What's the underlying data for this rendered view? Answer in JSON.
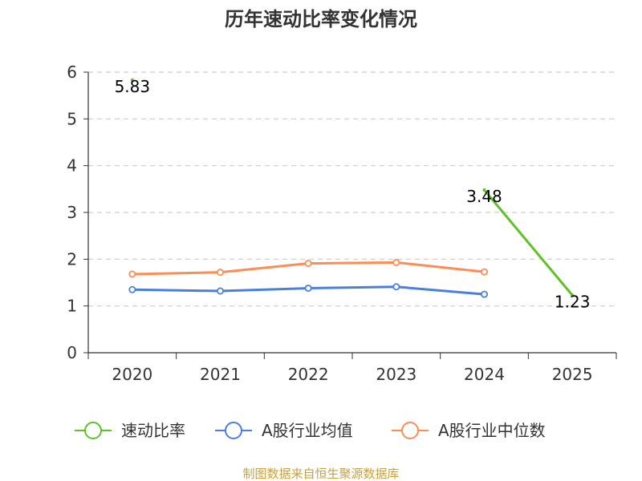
{
  "chart_data": {
    "type": "line",
    "title": "历年速动比率变化情况",
    "categories": [
      "2020",
      "2021",
      "2022",
      "2023",
      "2024",
      "2025"
    ],
    "ylim": [
      0,
      6
    ],
    "yticks": [
      "0",
      "1",
      "2",
      "3",
      "4",
      "5",
      "6"
    ],
    "grid": true,
    "series": [
      {
        "name": "速动比率",
        "color": "#5ec226",
        "values": [
          5.83,
          null,
          null,
          null,
          3.48,
          1.23
        ],
        "labels": [
          "5.83",
          null,
          null,
          null,
          "3.48",
          "1.23"
        ]
      },
      {
        "name": "A股行业均值",
        "color": "#4a7fdc",
        "values": [
          1.35,
          1.32,
          1.38,
          1.41,
          1.25,
          null
        ]
      },
      {
        "name": "A股行业中位数",
        "color": "#fb8d55",
        "values": [
          1.68,
          1.72,
          1.91,
          1.93,
          1.73,
          null
        ]
      }
    ],
    "legend_position": "bottom"
  },
  "source": "制图数据来自恒生聚源数据库"
}
